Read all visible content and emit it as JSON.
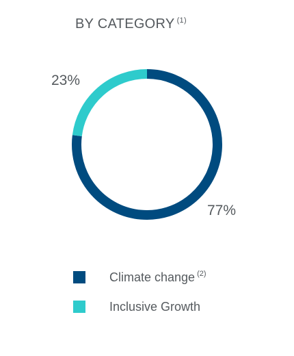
{
  "header": {
    "title": "BY CATEGORY",
    "title_note": "(1)"
  },
  "chart_data": {
    "type": "pie",
    "donut": true,
    "slices": [
      {
        "label": "Climate change",
        "note": "(2)",
        "value": 77,
        "value_label": "77%",
        "color": "#004b7f"
      },
      {
        "label": "Inclusive Growth",
        "note": "",
        "value": 23,
        "value_label": "23%",
        "color": "#2ecbcc"
      }
    ],
    "legend_position": "bottom"
  }
}
